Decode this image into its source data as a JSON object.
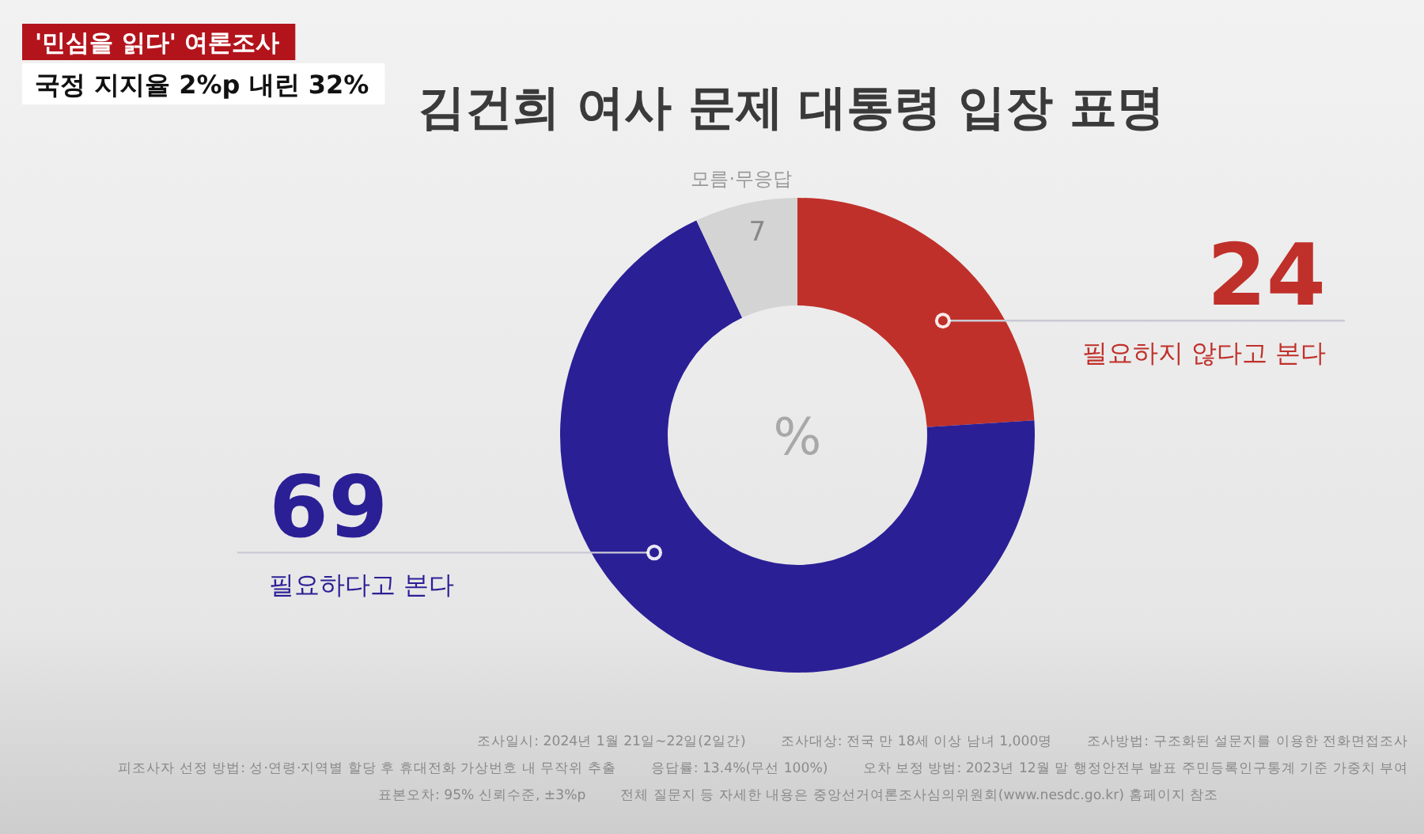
{
  "chart_data": {
    "type": "donut",
    "title": "김건희 여사 문제 대통령 입장 표명",
    "categories": [
      "필요하지 않다고 본다",
      "필요하다고 본다",
      "모름·무응답"
    ],
    "values": [
      24,
      69,
      7
    ],
    "colors": [
      "#c0302a",
      "#2b1f96",
      "#d4d4d4"
    ],
    "data_labels": true,
    "annotations": [
      "'민심을 읽다' 여론조사",
      "국정 지지율 2%p 내린 32%",
      "%",
      "조사일시: 2024년 1월 21일~22일(2일간)",
      "조사대상: 전국 만 18세 이상 남녀 1,000명",
      "조사방법: 구조화된 설문지를 이용한 전화면접조사",
      "피조사자 선정 방법: 성·연령·지역별 할당 후 휴대전화 가상번호 내 무작위 추출",
      "응답률: 13.4%(무선 100%)",
      "오차 보정 방법: 2023년 12월 말 행정안전부 발표 주민등록인구통계 기준 가중치 부여",
      "표본오차: 95% 신뢰수준, ±3%p",
      "전체 질문지 등 자세한 내용은 중앙선거여론조사심의위원회(www.nesdc.go.kr) 홈페이지 참조"
    ]
  }
}
